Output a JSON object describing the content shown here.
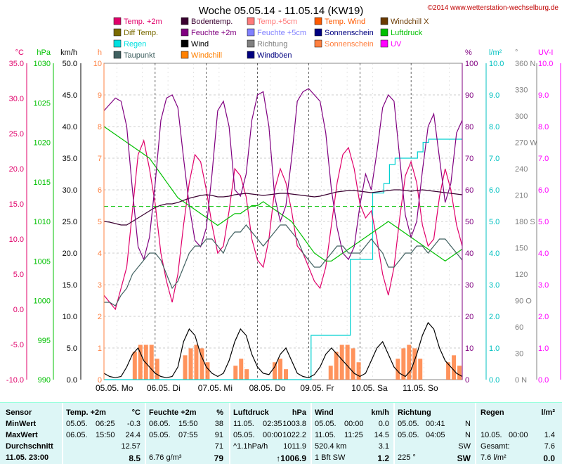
{
  "header": {
    "title": "Woche 05.05.14 - 11.05.14 (KW19)",
    "copyright": "©2014 www.wetterstation-wechselburg.de"
  },
  "legend": [
    {
      "label": "Temp. +2m",
      "color": "#e0006a"
    },
    {
      "label": "Bodentemp.",
      "color": "#3a0030"
    },
    {
      "label": "Temp.+5cm",
      "color": "#ff7a7a"
    },
    {
      "label": "Temp. Wind",
      "color": "#ff5a00"
    },
    {
      "label": "Windchill X",
      "color": "#6a3a00"
    },
    {
      "label": "Diff Temp.",
      "color": "#7a6a00"
    },
    {
      "label": "Feuchte +2m",
      "color": "#800080"
    },
    {
      "label": "Feuchte +5cm",
      "color": "#8080ff"
    },
    {
      "label": "Sonnenschein",
      "color": "#000080"
    },
    {
      "label": "Luftdruck",
      "color": "#00c000"
    },
    {
      "label": "Regen",
      "color": "#00e0e0"
    },
    {
      "label": "Wind",
      "color": "#000000"
    },
    {
      "label": "Richtung",
      "color": "#808080"
    },
    {
      "label": "Sonnenschein",
      "color": "#ff8040"
    },
    {
      "label": "UV",
      "color": "#ff00ff"
    },
    {
      "label": "Taupunkt",
      "color": "#406060"
    },
    {
      "label": "Windchill",
      "color": "#ff8000"
    },
    {
      "label": "Windböen",
      "color": "#000080"
    }
  ],
  "chart_data": {
    "type": "line",
    "x_labels": [
      "05.05. Mo",
      "06.05. Di",
      "07.05. Mi",
      "08.05. Do",
      "09.05. Fr",
      "10.05. Sa",
      "11.05. So"
    ],
    "axes": {
      "temp_c": {
        "unit": "°C",
        "color": "#e0006a",
        "ticks": [
          "35.0",
          "30.0",
          "25.0",
          "20.0",
          "15.0",
          "10.0",
          "5.0",
          "0.0",
          "-5.0",
          "-10.0"
        ]
      },
      "pressure_hpa": {
        "unit": "hPa",
        "color": "#00c000",
        "ticks": [
          "1030",
          "1025",
          "1020",
          "1015",
          "1010",
          "1005",
          "1000",
          "995",
          "990"
        ]
      },
      "wind_kmh": {
        "unit": "km/h",
        "color": "#000000",
        "ticks": [
          "50.0",
          "45.0",
          "40.0",
          "35.0",
          "30.0",
          "25.0",
          "20.0",
          "15.0",
          "10.0",
          "5.0",
          "0.0"
        ]
      },
      "sun_h": {
        "unit": "h",
        "color": "#ff8040",
        "ticks": [
          "10",
          "9",
          "8",
          "7",
          "6",
          "5",
          "4",
          "3",
          "2",
          "1",
          "0"
        ]
      },
      "humidity_pct": {
        "unit": "%",
        "color": "#800080",
        "ticks": [
          "100",
          "90",
          "80",
          "70",
          "60",
          "50",
          "40",
          "30",
          "20",
          "10",
          "0"
        ]
      },
      "rain_lm2": {
        "unit": "l/m²",
        "color": "#00c0c0",
        "ticks": [
          "10.0",
          "9.0",
          "8.0",
          "7.0",
          "6.0",
          "5.0",
          "4.0",
          "3.0",
          "2.0",
          "1.0",
          "0.0"
        ]
      },
      "direction_deg": {
        "unit": "°",
        "color": "#808080",
        "ticks": [
          "360 N",
          "330",
          "300",
          "270 W",
          "240",
          "210",
          "180 S",
          "150",
          "120",
          "90 O",
          "60",
          "30",
          "0 N"
        ]
      },
      "uv": {
        "unit": "UV-I",
        "color": "#ff00ff",
        "ticks": [
          "10.0",
          "9.0",
          "8.0",
          "7.0",
          "6.0",
          "5.0",
          "4.0",
          "3.0",
          "2.0",
          "1.0",
          "0.0"
        ]
      }
    },
    "series": [
      {
        "name": "Temp. +2m",
        "color": "#e0006a",
        "axis": "temp_c",
        "values": [
          2,
          1,
          0,
          3,
          6,
          14,
          22,
          24,
          20,
          15,
          8,
          4,
          1,
          5,
          12,
          18,
          22,
          21,
          17,
          12,
          8,
          9,
          14,
          20,
          19,
          16,
          10,
          7,
          6,
          10,
          17,
          20,
          18,
          14,
          9,
          8,
          6,
          4,
          3,
          6,
          12,
          18,
          22,
          23,
          20,
          15,
          13,
          14,
          10,
          5,
          2,
          6,
          13,
          19,
          21,
          18,
          12,
          9,
          10,
          16,
          20,
          17,
          12,
          9
        ]
      },
      {
        "name": "Luftdruck",
        "color": "#00c000",
        "axis": "pressure_hpa",
        "values": [
          1022,
          1021.5,
          1021,
          1020.5,
          1020,
          1019.5,
          1019,
          1018.5,
          1018,
          1017,
          1016,
          1015,
          1014,
          1013,
          1012.5,
          1012,
          1011.5,
          1011,
          1010.5,
          1010,
          1009.5,
          1010,
          1010.5,
          1011,
          1011,
          1011.5,
          1012,
          1012,
          1012.5,
          1012,
          1011.5,
          1011,
          1010.5,
          1010,
          1009,
          1008,
          1007,
          1006,
          1005.5,
          1005,
          1005,
          1005.5,
          1006,
          1006.5,
          1007,
          1007.5,
          1008,
          1008.5,
          1009,
          1009.5,
          1010,
          1009.5,
          1009,
          1008.5,
          1008,
          1007.5,
          1007,
          1006.5,
          1006,
          1005.5,
          1005,
          1005.5,
          1006,
          1006.5
        ]
      },
      {
        "name": "Bodentemp.",
        "color": "#3a0030",
        "axis": "temp_c",
        "values": [
          12.5,
          12.4,
          12.2,
          12,
          12,
          12.5,
          13,
          13.5,
          14,
          14.5,
          14.8,
          15,
          15,
          15.2,
          15.5,
          15.8,
          16,
          16.2,
          16.3,
          16.2,
          16,
          16,
          16.1,
          16.3,
          16.4,
          16.5,
          16.4,
          16.3,
          16.2,
          16.3,
          16.4,
          16.5,
          16.5,
          16.4,
          16.3,
          16.2,
          16.1,
          16,
          16.1,
          16.3,
          16.5,
          16.7,
          16.8,
          16.9,
          16.9,
          16.8,
          16.7,
          16.6,
          16.7,
          16.8,
          16.9,
          17,
          17,
          16.9,
          16.8,
          16.9,
          17,
          16.9,
          16.8,
          16.7,
          16.6,
          16.5,
          16.4,
          16.3
        ]
      },
      {
        "name": "Feuchte +2m",
        "color": "#800080",
        "axis": "humidity_pct",
        "values": [
          85,
          87,
          89,
          88,
          80,
          60,
          42,
          38,
          45,
          62,
          82,
          89,
          90,
          86,
          70,
          55,
          44,
          42,
          48,
          65,
          85,
          88,
          80,
          60,
          58,
          65,
          82,
          90,
          91,
          80,
          58,
          50,
          55,
          70,
          88,
          91,
          92,
          90,
          88,
          78,
          60,
          48,
          40,
          38,
          42,
          55,
          65,
          60,
          72,
          86,
          90,
          88,
          70,
          52,
          45,
          50,
          66,
          80,
          84,
          70,
          56,
          62,
          78,
          82
        ]
      },
      {
        "name": "Taupunkt",
        "color": "#406060",
        "axis": "temp_c",
        "values": [
          1,
          1,
          0.5,
          2,
          3,
          5,
          6,
          7,
          8,
          8,
          7,
          5,
          3,
          4,
          6,
          8,
          9,
          9,
          10,
          10,
          9,
          8,
          10,
          11,
          11,
          12,
          11,
          10,
          9,
          10,
          11,
          12,
          12,
          11,
          10,
          8,
          7,
          6,
          6,
          7,
          8,
          9,
          9,
          8,
          8,
          8,
          9,
          10,
          9,
          8,
          6,
          6,
          7,
          8,
          8,
          9,
          9,
          8,
          9,
          10,
          10,
          9,
          8,
          7
        ]
      },
      {
        "name": "Wind",
        "color": "#000000",
        "axis": "wind_kmh",
        "values": [
          1,
          0.5,
          0.3,
          0.5,
          2,
          4,
          5,
          3,
          2,
          1,
          0.5,
          0.3,
          0.5,
          2,
          6,
          8,
          7,
          4,
          2,
          1,
          0.5,
          1,
          3,
          6,
          8,
          7,
          4,
          2,
          1,
          0.8,
          2,
          4,
          5,
          3,
          1,
          0.5,
          0.3,
          0.8,
          2,
          4,
          5,
          4,
          3,
          2,
          1,
          0.5,
          1,
          3,
          5,
          6,
          4,
          2,
          1,
          0.5,
          1.5,
          4,
          7,
          9,
          8,
          5,
          3,
          2,
          1,
          0.5
        ]
      }
    ],
    "sunshine_bars": [
      0,
      0,
      0,
      0,
      0,
      0.8,
      1,
      1,
      1,
      0.6,
      0,
      0,
      0,
      0,
      0.7,
      0.9,
      1,
      0.9,
      0.5,
      0,
      0,
      0,
      0,
      0.4,
      0.6,
      0.3,
      0,
      0,
      0,
      0,
      0.5,
      0.6,
      0.3,
      0,
      0,
      0,
      0,
      0,
      0,
      0,
      0.4,
      0.8,
      1,
      1,
      0.9,
      0.5,
      0,
      0,
      0,
      0,
      0,
      0,
      0.6,
      0.9,
      1,
      0.9,
      0.6,
      0,
      0,
      0,
      0,
      0.5,
      0.7,
      0.4
    ],
    "rain_steps": {
      "days": [
        0,
        0,
        0,
        0,
        0,
        0,
        0,
        0,
        0,
        0,
        0,
        0,
        0,
        0,
        0,
        0,
        0,
        0,
        0,
        0,
        0,
        0,
        0,
        0,
        0,
        0,
        0,
        0,
        0,
        0,
        0,
        0,
        0,
        0,
        0,
        0,
        0,
        1.4,
        1.4,
        1.4,
        1.4,
        1.4,
        1.4,
        1.4,
        3.8,
        3.8,
        3.8,
        3.8,
        5.9,
        5.9,
        6.2,
        6.8,
        7.0,
        7.0,
        7.0,
        7.0,
        7.2,
        7.5,
        7.6,
        7.6,
        7.6,
        7.6,
        7.6,
        7.6
      ]
    }
  },
  "table": {
    "headers": {
      "sensor": "Sensor",
      "temp": "Temp. +2m",
      "temp_unit": "°C",
      "hum": "Feuchte +2m",
      "hum_unit": "%",
      "press": "Luftdruck",
      "press_unit": "hPa",
      "wind": "Wind",
      "wind_unit": "km/h",
      "dir": "Richtung",
      "rain": "Regen",
      "rain_unit": "l/m²"
    },
    "rows": [
      {
        "label": "MinWert",
        "temp_date": "05.05.",
        "temp_time": "06:25",
        "temp_val": "-0.3",
        "hum_date": "06.05.",
        "hum_time": "15:50",
        "hum_val": "38",
        "press_date": "11.05.",
        "press_time": "02:35",
        "press_val": "1003.8",
        "wind_date": "05.05.",
        "wind_time": "00:00",
        "wind_val": "0.0",
        "dir_date": "05.05.",
        "dir_time": "00:41",
        "dir_val": "N",
        "rain_date": "",
        "rain_time": "",
        "rain_val": ""
      },
      {
        "label": "MaxWert",
        "temp_date": "06.05.",
        "temp_time": "15:50",
        "temp_val": "24.4",
        "hum_date": "05.05.",
        "hum_time": "07:55",
        "hum_val": "91",
        "press_date": "05.05.",
        "press_time": "00:00",
        "press_val": "1022.2",
        "wind_date": "11.05.",
        "wind_time": "11:25",
        "wind_val": "14.5",
        "dir_date": "05.05.",
        "dir_time": "04:05",
        "dir_val": "N",
        "rain_date": "10.05.",
        "rain_time": "00:00",
        "rain_val": "1.4"
      },
      {
        "label": "Durchschnitt",
        "temp_date": "",
        "temp_time": "",
        "temp_val": "12.57",
        "hum_date": "",
        "hum_time": "",
        "hum_val": "71",
        "press_date": "^1.1hPa/h",
        "press_time": "",
        "press_val": "1011.9",
        "wind_date": "520.4 km",
        "wind_time": "",
        "wind_val": "3.1",
        "dir_date": "",
        "dir_time": "",
        "dir_val": "SW",
        "rain_date": "Gesamt:",
        "rain_time": "",
        "rain_val": "7.6"
      },
      {
        "label": "11.05. 23:00",
        "temp_date": "",
        "temp_time": "",
        "temp_val": "8.5",
        "hum_date": "6.76 g/m³",
        "hum_time": "",
        "hum_val": "79",
        "press_date": "",
        "press_time": "",
        "press_val": "↑1006.9",
        "wind_date": "1 Bft SW",
        "wind_time": "",
        "wind_val": "1.2",
        "dir_date": "225 °",
        "dir_time": "",
        "dir_val": "SW",
        "rain_date": "7.6 l/m²",
        "rain_time": "",
        "rain_val": "0.0"
      }
    ]
  }
}
